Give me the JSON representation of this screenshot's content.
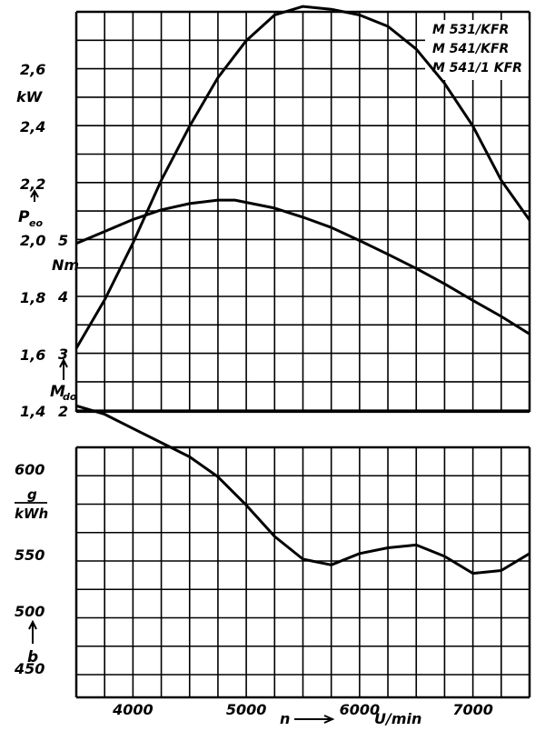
{
  "chart_data": {
    "type": "line",
    "xlabel": "n",
    "xunit": "U/min",
    "xlim": [
      3500,
      7500
    ],
    "x_ticks": [
      "4000",
      "5000",
      "6000",
      "7000"
    ],
    "legend": [
      "M 531/KFR",
      "M 541/KFR",
      "M 541/1 KFR"
    ],
    "power": {
      "symbol": "Peo",
      "unit": "kW",
      "ylim": [
        1.3,
        2.8
      ],
      "ticks": [
        "1,4",
        "1,6",
        "1,8",
        "2,0",
        "2,2",
        "2,4",
        "2,6"
      ],
      "points": [
        [
          3500,
          1.52
        ],
        [
          3750,
          1.69
        ],
        [
          4000,
          1.89
        ],
        [
          4250,
          2.11
        ],
        [
          4500,
          2.3
        ],
        [
          4750,
          2.47
        ],
        [
          5000,
          2.6
        ],
        [
          5250,
          2.69
        ],
        [
          5500,
          2.72
        ],
        [
          5750,
          2.71
        ],
        [
          6000,
          2.69
        ],
        [
          6250,
          2.65
        ],
        [
          6500,
          2.57
        ],
        [
          6750,
          2.45
        ],
        [
          7000,
          2.3
        ],
        [
          7250,
          2.11
        ],
        [
          7500,
          1.97
        ]
      ]
    },
    "torque": {
      "symbol": "Mdo",
      "unit": "Nm",
      "ylim": [
        1.3,
        6.1
      ],
      "ticks": [
        "2",
        "3",
        "4",
        "5"
      ],
      "points": [
        [
          3500,
          4.24
        ],
        [
          3750,
          4.45
        ],
        [
          4000,
          4.66
        ],
        [
          4250,
          4.83
        ],
        [
          4500,
          4.94
        ],
        [
          4750,
          5.0
        ],
        [
          4900,
          5.0
        ],
        [
          5250,
          4.86
        ],
        [
          5500,
          4.7
        ],
        [
          5750,
          4.52
        ],
        [
          6000,
          4.29
        ],
        [
          6250,
          4.05
        ],
        [
          6500,
          3.8
        ],
        [
          6750,
          3.53
        ],
        [
          7000,
          3.24
        ],
        [
          7250,
          2.96
        ],
        [
          7500,
          2.65
        ]
      ]
    },
    "consumption": {
      "symbol": "b",
      "unit": "g/kWh",
      "ylim": [
        440,
        600
      ],
      "ticks": [
        "450",
        "500",
        "550",
        "600"
      ],
      "points": [
        [
          3500,
          542
        ],
        [
          3750,
          539
        ],
        [
          4000,
          534
        ],
        [
          4250,
          529
        ],
        [
          4500,
          524
        ],
        [
          4750,
          517
        ],
        [
          5000,
          507
        ],
        [
          5250,
          496
        ],
        [
          5500,
          488
        ],
        [
          5750,
          486
        ],
        [
          6000,
          490
        ],
        [
          6250,
          492
        ],
        [
          6500,
          493
        ],
        [
          6750,
          489
        ],
        [
          7000,
          483
        ],
        [
          7250,
          484
        ],
        [
          7500,
          490
        ]
      ]
    }
  }
}
